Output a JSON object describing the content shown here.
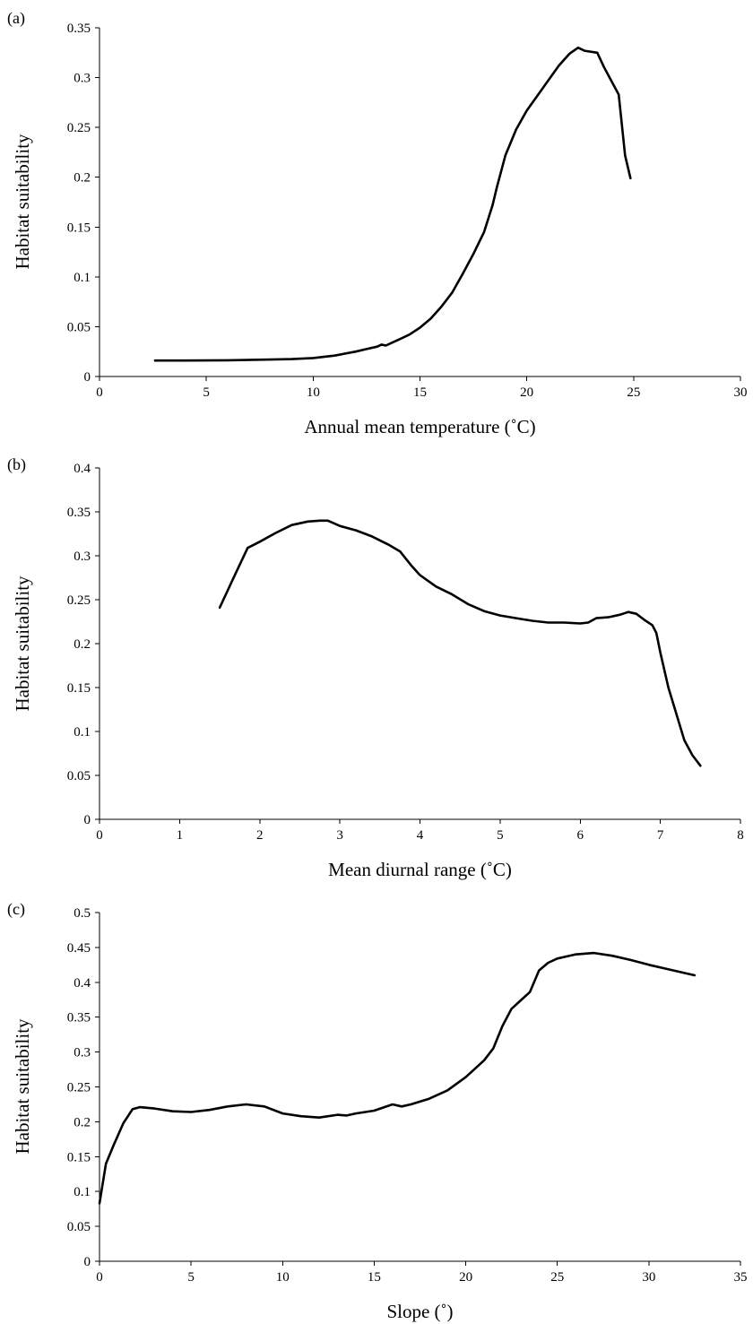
{
  "chart_data": [
    {
      "type": "line",
      "panel_label": "(a)",
      "title": "",
      "xlabel": "Annual mean temperature (˚C)",
      "ylabel": "Habitat suitability",
      "xlim": [
        0,
        30
      ],
      "ylim": [
        0,
        0.35
      ],
      "xticks": [
        0,
        5,
        10,
        15,
        20,
        25,
        30
      ],
      "yticks": [
        0,
        0.05,
        0.1,
        0.15,
        0.2,
        0.25,
        0.3,
        0.35
      ],
      "xtick_labels": [
        "0",
        "5",
        "10",
        "15",
        "20",
        "25",
        "30"
      ],
      "ytick_labels": [
        "0",
        "0.05",
        "0.1",
        "0.15",
        "0.2",
        "0.25",
        "0.3",
        "0.35"
      ],
      "grid": false,
      "series": [
        {
          "x": [
            2.6,
            4,
            6,
            8,
            9,
            10,
            11,
            12,
            12.5,
            13,
            13.2,
            13.4,
            13.7,
            14,
            14.5,
            15,
            15.5,
            16,
            16.5,
            17,
            17.5,
            18,
            18.4,
            18.6,
            19,
            19.5,
            20,
            20.5,
            21,
            21.5,
            22,
            22.4,
            22.7,
            23.3,
            23.6,
            24.0,
            24.3,
            24.6,
            24.85
          ],
          "y": [
            0.016,
            0.016,
            0.0163,
            0.017,
            0.0175,
            0.0185,
            0.021,
            0.025,
            0.0275,
            0.03,
            0.032,
            0.031,
            0.034,
            0.037,
            0.042,
            0.049,
            0.058,
            0.07,
            0.084,
            0.103,
            0.123,
            0.145,
            0.172,
            0.19,
            0.222,
            0.248,
            0.267,
            0.282,
            0.297,
            0.312,
            0.324,
            0.33,
            0.327,
            0.325,
            0.311,
            0.295,
            0.283,
            0.222,
            0.199
          ]
        }
      ]
    },
    {
      "type": "line",
      "panel_label": "(b)",
      "title": "",
      "xlabel": "Mean diurnal range (˚C)",
      "ylabel": "Habitat suitability",
      "xlim": [
        0,
        8
      ],
      "ylim": [
        0,
        0.4
      ],
      "xticks": [
        0,
        1,
        2,
        3,
        4,
        5,
        6,
        7,
        8
      ],
      "yticks": [
        0,
        0.05,
        0.1,
        0.15,
        0.2,
        0.25,
        0.3,
        0.35,
        0.4
      ],
      "xtick_labels": [
        "0",
        "1",
        "2",
        "3",
        "4",
        "5",
        "6",
        "7",
        "8"
      ],
      "ytick_labels": [
        "0",
        "0.05",
        "0.1",
        "0.15",
        "0.2",
        "0.25",
        "0.3",
        "0.35",
        "0.4"
      ],
      "grid": false,
      "series": [
        {
          "x": [
            1.5,
            1.7,
            1.85,
            2.0,
            2.2,
            2.4,
            2.6,
            2.75,
            2.85,
            3.0,
            3.2,
            3.4,
            3.6,
            3.75,
            3.9,
            4.0,
            4.2,
            4.4,
            4.6,
            4.8,
            5.0,
            5.2,
            5.4,
            5.6,
            5.8,
            6.0,
            6.1,
            6.2,
            6.35,
            6.5,
            6.6,
            6.7,
            6.8,
            6.9,
            6.95,
            7.0,
            7.1,
            7.2,
            7.3,
            7.4,
            7.5
          ],
          "y": [
            0.241,
            0.28,
            0.309,
            0.316,
            0.326,
            0.335,
            0.339,
            0.34,
            0.34,
            0.334,
            0.329,
            0.322,
            0.313,
            0.305,
            0.288,
            0.278,
            0.265,
            0.256,
            0.245,
            0.237,
            0.232,
            0.229,
            0.226,
            0.224,
            0.224,
            0.223,
            0.224,
            0.229,
            0.23,
            0.233,
            0.236,
            0.234,
            0.227,
            0.221,
            0.212,
            0.19,
            0.15,
            0.12,
            0.09,
            0.073,
            0.061
          ]
        }
      ]
    },
    {
      "type": "line",
      "panel_label": "(c)",
      "title": "",
      "xlabel": "Slope (˚)",
      "ylabel": "Habitat suitability",
      "xlim": [
        0,
        35
      ],
      "ylim": [
        0,
        0.5
      ],
      "xticks": [
        0,
        5,
        10,
        15,
        20,
        25,
        30,
        35
      ],
      "yticks": [
        0,
        0.05,
        0.1,
        0.15,
        0.2,
        0.25,
        0.3,
        0.35,
        0.4,
        0.45,
        0.5
      ],
      "xtick_labels": [
        "0",
        "5",
        "10",
        "15",
        "20",
        "25",
        "30",
        "35"
      ],
      "ytick_labels": [
        "0",
        "0.05",
        "0.1",
        "0.15",
        "0.2",
        "0.25",
        "0.3",
        "0.35",
        "0.4",
        "0.45",
        "0.5"
      ],
      "grid": false,
      "series": [
        {
          "x": [
            0,
            0.35,
            0.8,
            1.3,
            1.8,
            2.2,
            3,
            4,
            5,
            6,
            7,
            8,
            9,
            10,
            11,
            12,
            13,
            13.5,
            14,
            15,
            16,
            16.5,
            17,
            18,
            19,
            20,
            21,
            21.5,
            22,
            22.5,
            23,
            23.5,
            24,
            24.5,
            25,
            26,
            27,
            28,
            29,
            30,
            31,
            32.5
          ],
          "y": [
            0.083,
            0.14,
            0.168,
            0.198,
            0.218,
            0.221,
            0.219,
            0.215,
            0.214,
            0.217,
            0.222,
            0.225,
            0.222,
            0.212,
            0.208,
            0.206,
            0.21,
            0.209,
            0.212,
            0.216,
            0.225,
            0.222,
            0.225,
            0.233,
            0.245,
            0.264,
            0.288,
            0.305,
            0.337,
            0.362,
            0.374,
            0.386,
            0.417,
            0.428,
            0.434,
            0.44,
            0.442,
            0.438,
            0.432,
            0.425,
            0.419,
            0.41
          ]
        }
      ]
    }
  ]
}
